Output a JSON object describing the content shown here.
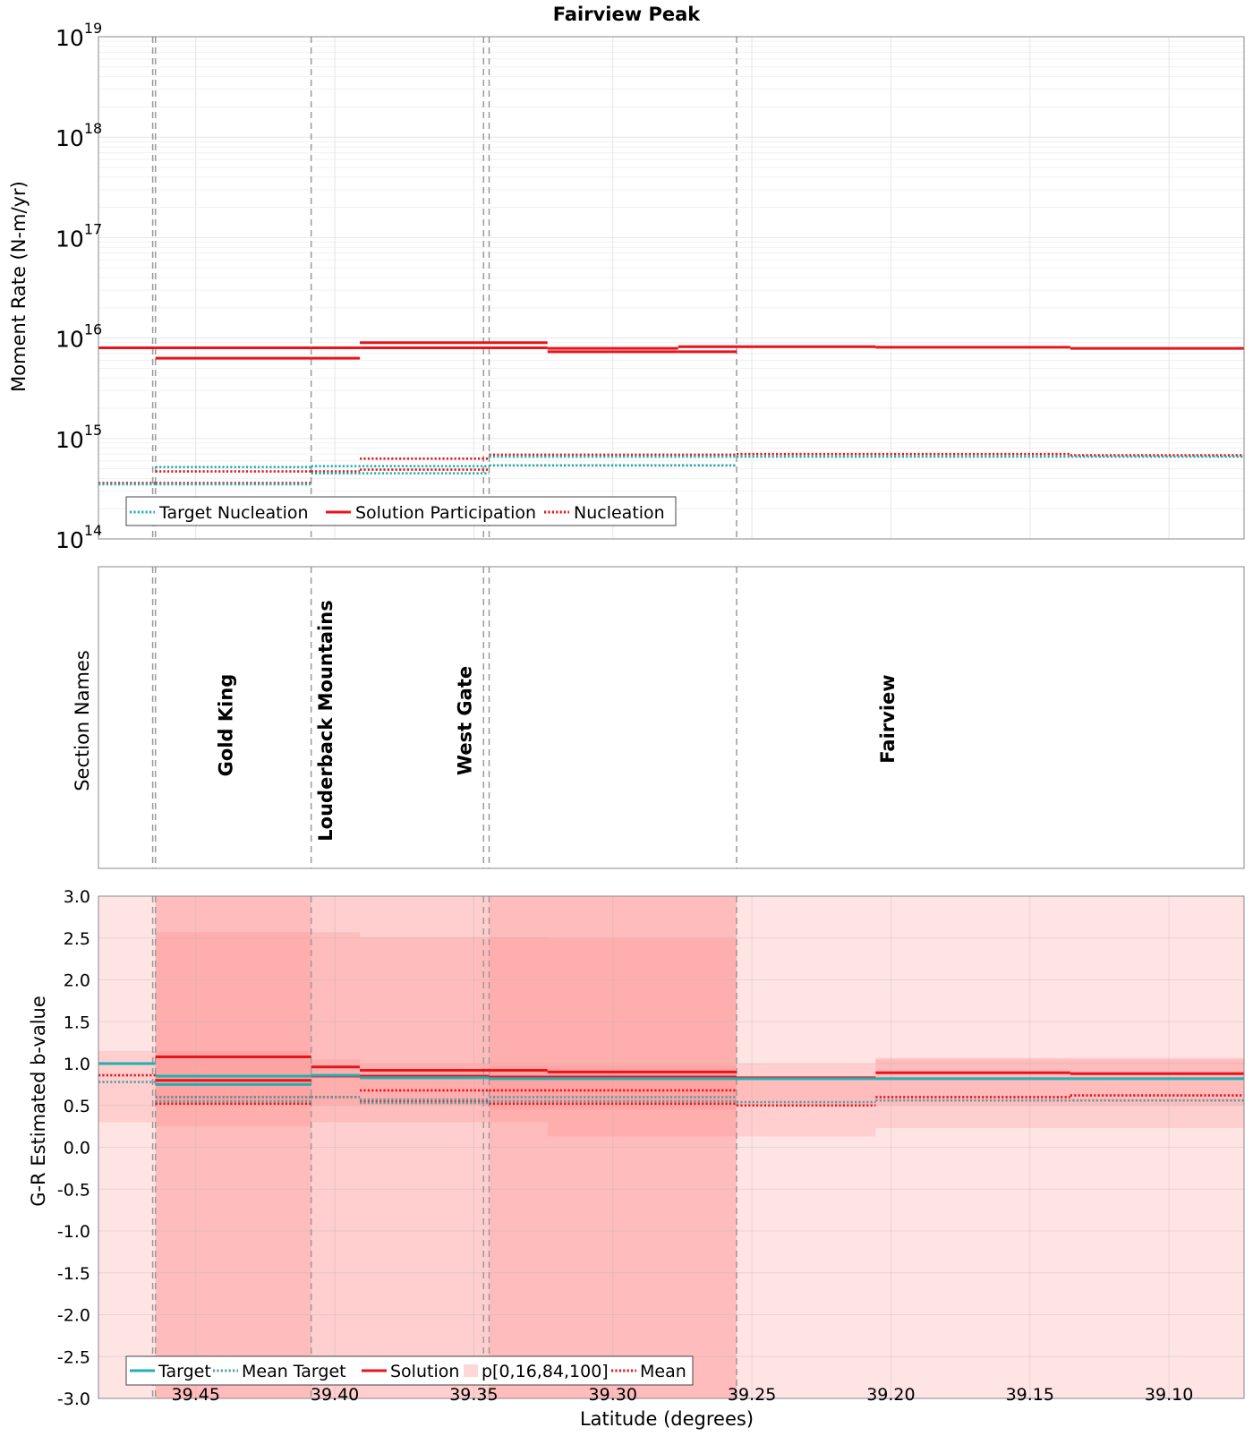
{
  "title": "Fairview Peak",
  "xlabel": "Latitude (degrees)",
  "x_ticks": [
    "39.45",
    "39.40",
    "39.35",
    "39.30",
    "39.25",
    "39.20",
    "39.15",
    "39.10"
  ],
  "x_tick_values": [
    39.45,
    39.4,
    39.35,
    39.3,
    39.25,
    39.2,
    39.15,
    39.1
  ],
  "xlim": [
    39.485,
    39.073
  ],
  "section_boundaries": [
    39.4655,
    39.4645,
    39.4085,
    39.3465,
    39.3445,
    39.2555
  ],
  "colors": {
    "target": "#1fb0b4",
    "mean_target": "#5a9ea1",
    "solution": "#e8141b",
    "mean": "#e8141b",
    "band_fill": "#ff7a7a",
    "grid": "#e6e6e6",
    "boundary": "#9a9a9a"
  },
  "chart_data": [
    {
      "type": "line",
      "panel": "moment_rate",
      "ylabel": "Moment Rate (N-m/yr)",
      "yscale": "log",
      "ylim_exponents": [
        14,
        19
      ],
      "y_tick_base": "10",
      "y_tick_exponents": [
        "14",
        "15",
        "16",
        "17",
        "18",
        "19"
      ],
      "legend": [
        "Target Nucleation",
        "Solution Participation",
        "Nucleation"
      ],
      "series": [
        {
          "name": "Solution Participation",
          "style": "solid",
          "color": "solution",
          "segments": [
            [
              39.485,
              39.4645,
              8000000000000000.0
            ],
            [
              39.4645,
              39.4085,
              8000000000000000.0
            ],
            [
              39.4645,
              39.4085,
              6300000000000000.0
            ],
            [
              39.4085,
              39.391,
              8000000000000000.0
            ],
            [
              39.4085,
              39.391,
              6300000000000000.0
            ],
            [
              39.391,
              39.3445,
              9000000000000000.0
            ],
            [
              39.391,
              39.3445,
              8000000000000000.0
            ],
            [
              39.3445,
              39.3235,
              9000000000000000.0
            ],
            [
              39.3445,
              39.3235,
              8000000000000000.0
            ],
            [
              39.3235,
              39.2765,
              7900000000000000.0
            ],
            [
              39.3235,
              39.2765,
              7300000000000000.0
            ],
            [
              39.2765,
              39.2555,
              8200000000000000.0
            ],
            [
              39.2765,
              39.2555,
              7300000000000000.0
            ],
            [
              39.2555,
              39.2055,
              8200000000000000.0
            ],
            [
              39.2055,
              39.1355,
              8100000000000000.0
            ],
            [
              39.1355,
              39.073,
              7900000000000000.0
            ]
          ]
        },
        {
          "name": "Nucleation",
          "style": "dotted",
          "color": "mean",
          "segments": [
            [
              39.485,
              39.4645,
              360000000000000.0
            ],
            [
              39.4645,
              39.4085,
              360000000000000.0
            ],
            [
              39.4645,
              39.4085,
              470000000000000.0
            ],
            [
              39.4085,
              39.391,
              470000000000000.0
            ],
            [
              39.391,
              39.3445,
              630000000000000.0
            ],
            [
              39.391,
              39.3445,
              490000000000000.0
            ],
            [
              39.3445,
              39.2555,
              690000000000000.0
            ],
            [
              39.3445,
              39.2555,
              540000000000000.0
            ],
            [
              39.2555,
              39.1355,
              700000000000000.0
            ],
            [
              39.1355,
              39.073,
              680000000000000.0
            ]
          ]
        },
        {
          "name": "Target Nucleation",
          "style": "dotted",
          "color": "target",
          "segments": [
            [
              39.485,
              39.4645,
              350000000000000.0
            ],
            [
              39.4645,
              39.4085,
              350000000000000.0
            ],
            [
              39.4645,
              39.4085,
              520000000000000.0
            ],
            [
              39.4085,
              39.3445,
              530000000000000.0
            ],
            [
              39.4085,
              39.3445,
              450000000000000.0
            ],
            [
              39.3445,
              39.2555,
              540000000000000.0
            ],
            [
              39.3445,
              39.2555,
              660000000000000.0
            ],
            [
              39.2555,
              39.073,
              660000000000000.0
            ]
          ]
        }
      ]
    },
    {
      "type": "text",
      "panel": "section_names",
      "ylabel": "Section Names",
      "sections": [
        {
          "name": "Gold King",
          "center": 39.4395
        },
        {
          "name": "Louderback Mountains",
          "center": 39.4035
        },
        {
          "name": "West Gate",
          "center": 39.3535
        },
        {
          "name": "Fairview",
          "center": 39.2015
        }
      ]
    },
    {
      "type": "area",
      "panel": "b_value",
      "ylabel": "G-R Estimated b-value",
      "ylim": [
        -3.0,
        3.0
      ],
      "y_ticks": [
        "3.0",
        "2.5",
        "2.0",
        "1.5",
        "1.0",
        "0.5",
        "0.0",
        "-0.5",
        "-1.0",
        "-1.5",
        "-2.0",
        "-2.5",
        "-3.0"
      ],
      "y_tick_values": [
        3.0,
        2.5,
        2.0,
        1.5,
        1.0,
        0.5,
        0.0,
        -0.5,
        -1.0,
        -1.5,
        -2.0,
        -2.5,
        -3.0
      ],
      "legend": [
        "Target",
        "Mean Target",
        "Solution",
        "p[0,16,84,100]",
        "Mean"
      ],
      "bands": [
        {
          "x0": 39.485,
          "x1": 39.073,
          "lo": -3.0,
          "hi": 3.0
        },
        {
          "x0": 39.4645,
          "x1": 39.2555,
          "lo": -3.0,
          "hi": 3.0
        },
        {
          "x0": 39.4645,
          "x1": 39.4085,
          "lo": -3.0,
          "hi": 3.0
        },
        {
          "x0": 39.3445,
          "x1": 39.2555,
          "lo": -3.0,
          "hi": 3.0
        },
        {
          "x0": 39.485,
          "x1": 39.4645,
          "lo": 0.3,
          "hi": 1.15
        },
        {
          "x0": 39.4645,
          "x1": 39.4085,
          "lo": 0.25,
          "hi": 2.57
        },
        {
          "x0": 39.4085,
          "x1": 39.391,
          "lo": 0.3,
          "hi": 2.57
        },
        {
          "x0": 39.391,
          "x1": 39.3235,
          "lo": 0.3,
          "hi": 2.51
        },
        {
          "x0": 39.3235,
          "x1": 39.2555,
          "lo": 0.13,
          "hi": 2.5
        },
        {
          "x0": 39.2555,
          "x1": 39.2055,
          "lo": 0.13,
          "hi": 1.0
        },
        {
          "x0": 39.2055,
          "x1": 39.073,
          "lo": 0.23,
          "hi": 1.07
        },
        {
          "x0": 39.4645,
          "x1": 39.4085,
          "lo": 0.5,
          "hi": 1.15
        },
        {
          "x0": 39.4085,
          "x1": 39.391,
          "lo": 0.5,
          "hi": 1.05
        },
        {
          "x0": 39.391,
          "x1": 39.3445,
          "lo": 0.5,
          "hi": 1.0
        },
        {
          "x0": 39.3445,
          "x1": 39.2555,
          "lo": 0.45,
          "hi": 0.98
        },
        {
          "x0": 39.2555,
          "x1": 39.2055,
          "lo": 0.5,
          "hi": 0.85
        },
        {
          "x0": 39.2055,
          "x1": 39.073,
          "lo": 0.5,
          "hi": 1.05
        }
      ],
      "series": [
        {
          "name": "Solution",
          "style": "solid",
          "color": "solution",
          "segments": [
            [
              39.4645,
              39.4085,
              1.08
            ],
            [
              39.4645,
              39.4085,
              0.8
            ],
            [
              39.4085,
              39.391,
              0.96
            ],
            [
              39.4085,
              39.391,
              0.85
            ],
            [
              39.391,
              39.3445,
              0.92
            ],
            [
              39.391,
              39.3445,
              0.85
            ],
            [
              39.3445,
              39.3235,
              0.92
            ],
            [
              39.3235,
              39.2555,
              0.9
            ],
            [
              39.3445,
              39.2555,
              0.84
            ],
            [
              39.2555,
              39.2055,
              0.83
            ],
            [
              39.2055,
              39.1355,
              0.89
            ],
            [
              39.1355,
              39.073,
              0.88
            ]
          ]
        },
        {
          "name": "Target",
          "style": "solid",
          "color": "target",
          "segments": [
            [
              39.485,
              39.4645,
              1.0
            ],
            [
              39.4645,
              39.4085,
              0.85
            ],
            [
              39.4645,
              39.4085,
              0.75
            ],
            [
              39.4085,
              39.391,
              0.86
            ],
            [
              39.391,
              39.3445,
              0.83
            ],
            [
              39.3445,
              39.2555,
              0.82
            ],
            [
              39.2555,
              39.2055,
              0.82
            ],
            [
              39.2055,
              39.073,
              0.82
            ]
          ]
        },
        {
          "name": "Mean",
          "style": "dotted",
          "color": "mean",
          "segments": [
            [
              39.485,
              39.4645,
              0.86
            ],
            [
              39.4645,
              39.4085,
              0.6
            ],
            [
              39.4645,
              39.4085,
              0.52
            ],
            [
              39.4085,
              39.391,
              0.6
            ],
            [
              39.391,
              39.3445,
              0.68
            ],
            [
              39.391,
              39.3445,
              0.55
            ],
            [
              39.3445,
              39.2555,
              0.68
            ],
            [
              39.3445,
              39.2555,
              0.52
            ],
            [
              39.2555,
              39.2055,
              0.5
            ],
            [
              39.2055,
              39.1355,
              0.6
            ],
            [
              39.1355,
              39.073,
              0.62
            ]
          ]
        },
        {
          "name": "Mean Target",
          "style": "dotted",
          "color": "mean_target",
          "segments": [
            [
              39.485,
              39.4645,
              0.78
            ],
            [
              39.4645,
              39.4085,
              0.6
            ],
            [
              39.4645,
              39.4085,
              0.55
            ],
            [
              39.4085,
              39.391,
              0.6
            ],
            [
              39.391,
              39.3445,
              0.57
            ],
            [
              39.391,
              39.3445,
              0.53
            ],
            [
              39.3445,
              39.2555,
              0.6
            ],
            [
              39.3445,
              39.2555,
              0.55
            ],
            [
              39.2555,
              39.2055,
              0.54
            ],
            [
              39.2055,
              39.073,
              0.56
            ]
          ]
        }
      ]
    }
  ]
}
